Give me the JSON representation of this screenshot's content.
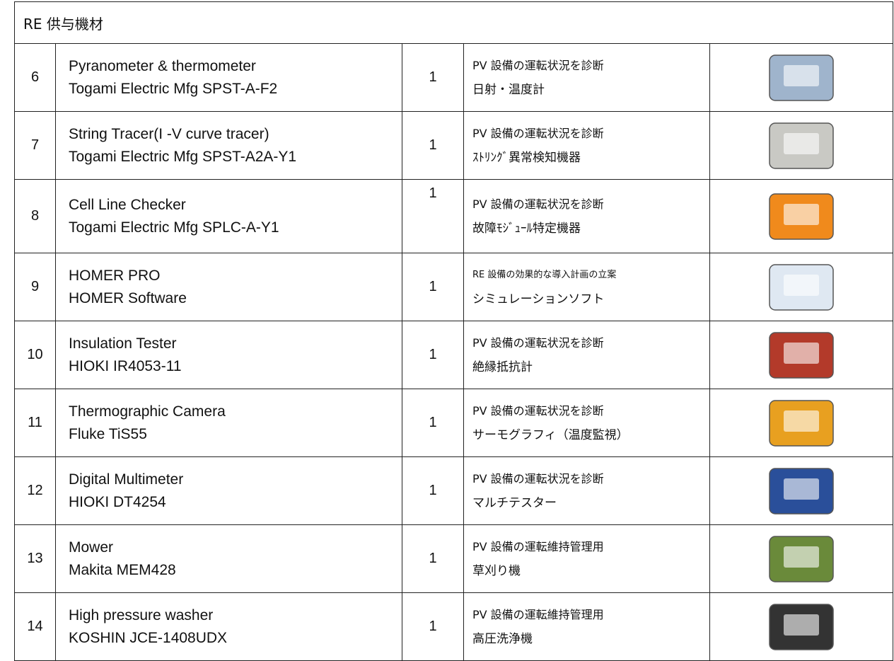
{
  "header": {
    "title": "RE 供与機材"
  },
  "table": {
    "rows": [
      {
        "no": "6",
        "name": "Pyranometer & thermometer",
        "model": "Togami Electric Mfg SPST-A-F2",
        "qty": "1",
        "purpose": "PV 設備の運転状況を診断",
        "description": "日射・温度計"
      },
      {
        "no": "7",
        "name": "String Tracer(I -V curve tracer)",
        "model": "Togami Electric Mfg SPST-A2A-Y1",
        "qty": "1",
        "purpose": "PV 設備の運転状況を診断",
        "description": "ｽﾄﾘﾝｸﾞ異常検知機器"
      },
      {
        "no": "8",
        "name": "Cell Line Checker",
        "model": "Togami Electric Mfg SPLC-A-Y1",
        "qty": "1",
        "purpose": "PV 設備の運転状況を診断",
        "description": "故障ﾓｼﾞｭｰﾙ特定機器"
      },
      {
        "no": "9",
        "name": "HOMER PRO",
        "model": "HOMER Software",
        "qty": "1",
        "purpose": "RE 設備の効果的な導入計画の立案",
        "description": "シミュレーションソフト"
      },
      {
        "no": "10",
        "name": "Insulation Tester",
        "model": "HIOKI IR4053-11",
        "qty": "1",
        "purpose": "PV 設備の運転状況を診断",
        "description": "絶縁抵抗計"
      },
      {
        "no": "11",
        "name": "Thermographic Camera",
        "model": "Fluke TiS55",
        "qty": "1",
        "purpose": "PV 設備の運転状況を診断",
        "description": "サーモグラフィ（温度監視）"
      },
      {
        "no": "12",
        "name": "Digital Multimeter",
        "model": "HIOKI DT4254",
        "qty": "1",
        "purpose": "PV 設備の運転状況を診断",
        "description": "マルチテスター"
      },
      {
        "no": "13",
        "name": "Mower",
        "model": "Makita MEM428",
        "qty": "1",
        "purpose": "PV 設備の運転維持管理用",
        "description": "草刈り機"
      },
      {
        "no": "14",
        "name": "High pressure washer",
        "model": "KOSHIN JCE-1408UDX",
        "qty": "1",
        "purpose": "PV 設備の運転維持管理用",
        "description": "高圧洗浄機"
      }
    ]
  }
}
